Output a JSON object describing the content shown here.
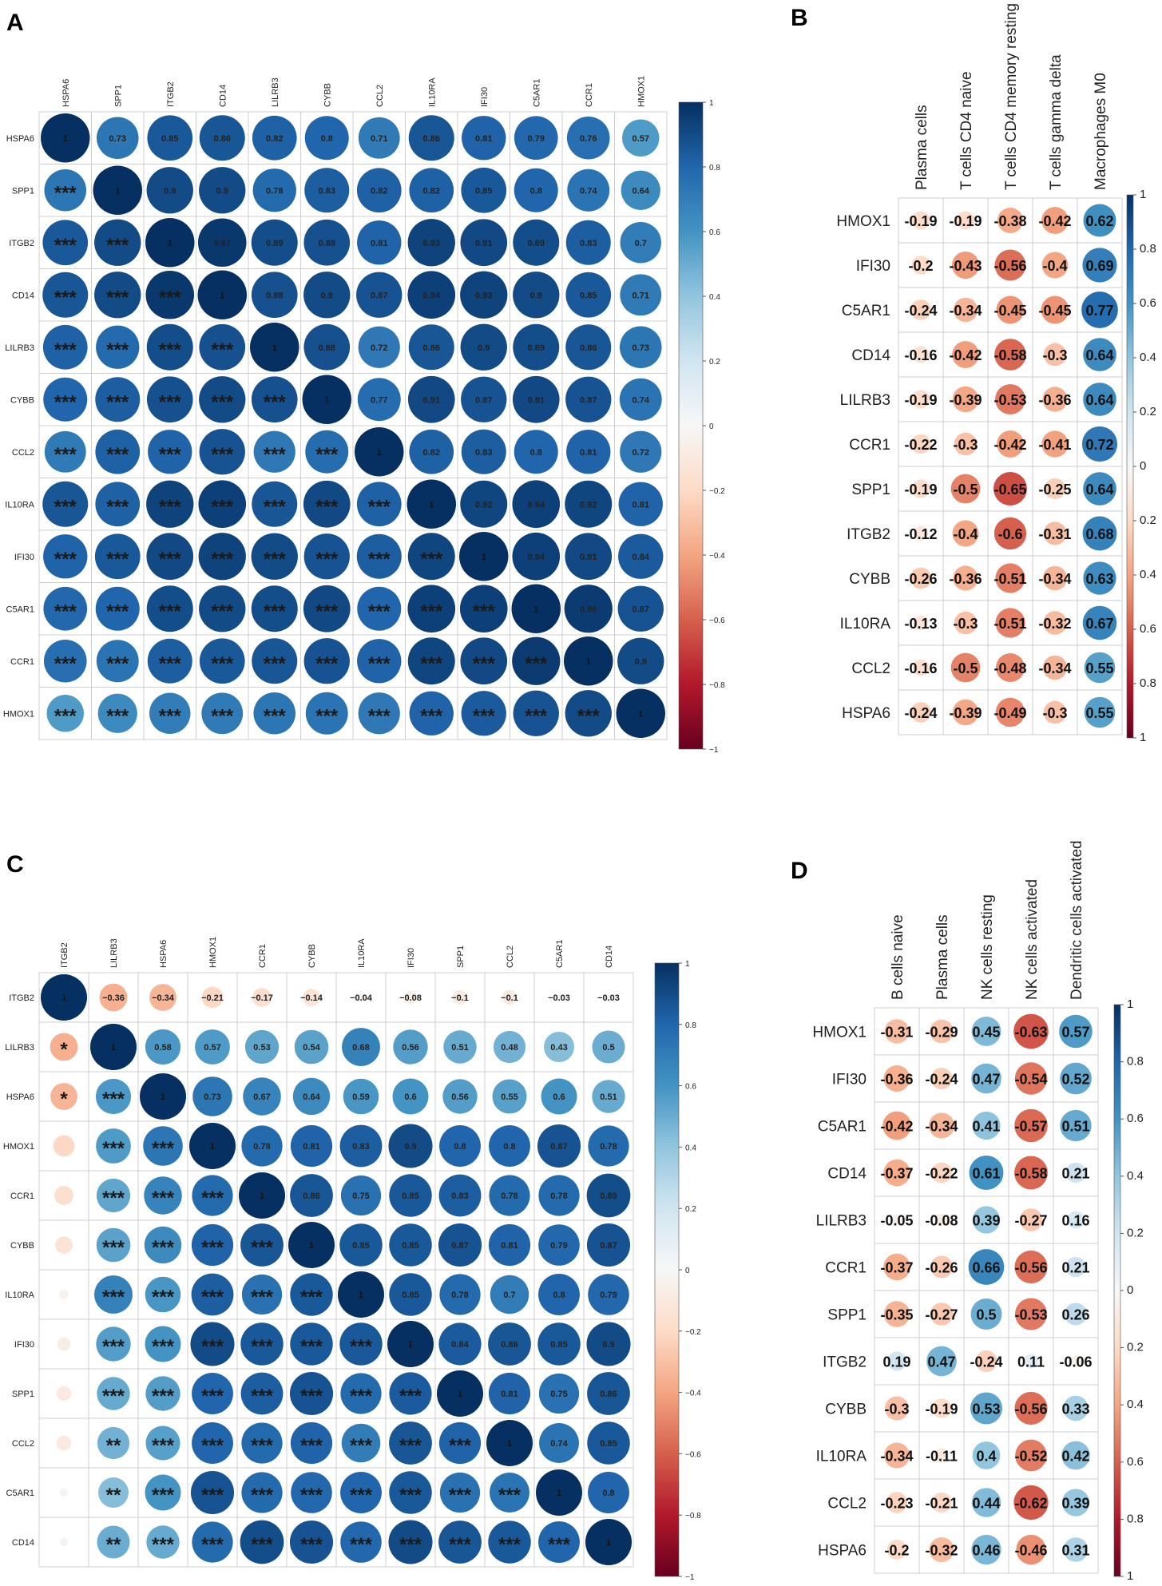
{
  "panels": [
    {
      "letter": "A",
      "chart_data": {
        "type": "heatmap",
        "rows": [
          "HSPA6",
          "SPP1",
          "ITGB2",
          "CD14",
          "LILRB3",
          "CYBB",
          "CCL2",
          "IL10RA",
          "IFI30",
          "C5AR1",
          "CCR1",
          "HMOX1"
        ],
        "cols": [
          "HSPA6",
          "SPP1",
          "ITGB2",
          "CD14",
          "LILRB3",
          "CYBB",
          "CCL2",
          "IL10RA",
          "IFI30",
          "C5AR1",
          "CCR1",
          "HMOX1"
        ],
        "upper_labels": [
          [
            "1",
            "0.73",
            "0.85",
            "0.86",
            "0.82",
            "0.8",
            "0.71",
            "0.86",
            "0.81",
            "0.79",
            "0.76",
            "0.57"
          ],
          [
            "",
            "1",
            "0.9",
            "0.9",
            "0.78",
            "0.83",
            "0.82",
            "0.82",
            "0.85",
            "0.8",
            "0.74",
            "0.64"
          ],
          [
            "",
            "",
            "1",
            "0.97",
            "0.89",
            "0.88",
            "0.81",
            "0.93",
            "0.91",
            "0.89",
            "0.83",
            "0.7"
          ],
          [
            "",
            "",
            "",
            "1",
            "0.88",
            "0.9",
            "0.87",
            "0.94",
            "0.93",
            "0.9",
            "0.85",
            "0.71"
          ],
          [
            "",
            "",
            "",
            "",
            "1",
            "0.88",
            "0.72",
            "0.86",
            "0.9",
            "0.89",
            "0.86",
            "0.73"
          ],
          [
            "",
            "",
            "",
            "",
            "",
            "1",
            "0.77",
            "0.91",
            "0.87",
            "0.91",
            "0.87",
            "0.74"
          ],
          [
            "",
            "",
            "",
            "",
            "",
            "",
            "1",
            "0.82",
            "0.83",
            "0.8",
            "0.81",
            "0.72"
          ],
          [
            "",
            "",
            "",
            "",
            "",
            "",
            "",
            "1",
            "0.92",
            "0.94",
            "0.92",
            "0.81"
          ],
          [
            "",
            "",
            "",
            "",
            "",
            "",
            "",
            "",
            "1",
            "0.94",
            "0.91",
            "0.84"
          ],
          [
            "",
            "",
            "",
            "",
            "",
            "",
            "",
            "",
            "",
            "1",
            "0.96",
            "0.87"
          ],
          [
            "",
            "",
            "",
            "",
            "",
            "",
            "",
            "",
            "",
            "",
            "1",
            "0.9"
          ],
          [
            "",
            "",
            "",
            "",
            "",
            "",
            "",
            "",
            "",
            "",
            "",
            "1"
          ]
        ],
        "lower_sig": [
          [],
          [
            "***"
          ],
          [
            "***",
            "***"
          ],
          [
            "***",
            "***",
            "***"
          ],
          [
            "***",
            "***",
            "***",
            "***"
          ],
          [
            "***",
            "***",
            "***",
            "***",
            "***"
          ],
          [
            "***",
            "***",
            "***",
            "***",
            "***",
            "***"
          ],
          [
            "***",
            "***",
            "***",
            "***",
            "***",
            "***",
            "***"
          ],
          [
            "***",
            "***",
            "***",
            "***",
            "***",
            "***",
            "***",
            "***"
          ],
          [
            "***",
            "***",
            "***",
            "***",
            "***",
            "***",
            "***",
            "***",
            "***"
          ],
          [
            "***",
            "***",
            "***",
            "***",
            "***",
            "***",
            "***",
            "***",
            "***",
            "***"
          ],
          [
            "***",
            "***",
            "***",
            "***",
            "***",
            "***",
            "***",
            "***",
            "***",
            "***",
            "***"
          ]
        ],
        "colorbar_ticks": [
          "1",
          "0.8",
          "0.6",
          "0.4",
          "0.2",
          "0",
          "−0.2",
          "−0.4",
          "−0.6",
          "−0.8",
          "−1"
        ],
        "range": [
          -1,
          1
        ]
      }
    },
    {
      "letter": "B",
      "chart_data": {
        "type": "heatmap",
        "rows": [
          "HMOX1",
          "IFI30",
          "C5AR1",
          "CD14",
          "LILRB3",
          "CCR1",
          "SPP1",
          "ITGB2",
          "CYBB",
          "IL10RA",
          "CCL2",
          "HSPA6"
        ],
        "cols": [
          "Plasma cells",
          "T cells CD4 naive",
          "T cells CD4 memory resting",
          "T cells gamma delta",
          "Macrophages M0"
        ],
        "labels": [
          [
            "-0.19",
            "-0.19",
            "-0.38",
            "-0.42",
            "0.62"
          ],
          [
            "-0.2",
            "-0.43",
            "-0.56",
            "-0.4",
            "0.69"
          ],
          [
            "-0.24",
            "-0.34",
            "-0.45",
            "-0.45",
            "0.77"
          ],
          [
            "-0.16",
            "-0.42",
            "-0.58",
            "-0.3",
            "0.64"
          ],
          [
            "-0.19",
            "-0.39",
            "-0.53",
            "-0.36",
            "0.64"
          ],
          [
            "-0.22",
            "-0.3",
            "-0.42",
            "-0.41",
            "0.72"
          ],
          [
            "-0.19",
            "-0.5",
            "-0.65",
            "-0.25",
            "0.64"
          ],
          [
            "-0.12",
            "-0.4",
            "-0.6",
            "-0.31",
            "0.68"
          ],
          [
            "-0.26",
            "-0.36",
            "-0.51",
            "-0.34",
            "0.63"
          ],
          [
            "-0.13",
            "-0.3",
            "-0.51",
            "-0.32",
            "0.67"
          ],
          [
            "-0.16",
            "-0.5",
            "-0.48",
            "-0.34",
            "0.55"
          ],
          [
            "-0.24",
            "-0.39",
            "-0.49",
            "-0.3",
            "0.55"
          ]
        ],
        "colorbar_ticks": [
          "1",
          "0.8",
          "0.6",
          "0.4",
          "0.2",
          "0",
          "0.2",
          "0.4",
          "0.6",
          "0.8",
          "1"
        ],
        "range": [
          -1,
          1
        ]
      }
    },
    {
      "letter": "C",
      "chart_data": {
        "type": "heatmap",
        "rows": [
          "ITGB2",
          "LILRB3",
          "HSPA6",
          "HMOX1",
          "CCR1",
          "CYBB",
          "IL10RA",
          "IFI30",
          "SPP1",
          "CCL2",
          "C5AR1",
          "CD14"
        ],
        "cols": [
          "ITGB2",
          "LILRB3",
          "HSPA6",
          "HMOX1",
          "CCR1",
          "CYBB",
          "IL10RA",
          "IFI30",
          "SPP1",
          "CCL2",
          "C5AR1",
          "CD14"
        ],
        "first_col_values": [
          1,
          -0.36,
          -0.34,
          -0.21,
          -0.17,
          -0.14,
          -0.04,
          -0.08,
          -0.1,
          -0.1,
          -0.03,
          -0.03
        ],
        "upper_labels": [
          [
            "1",
            "−0.36",
            "−0.34",
            "−0.21",
            "−0.17",
            "−0.14",
            "−0.04",
            "−0.08",
            "−0.1",
            "−0.1",
            "−0.03",
            "−0.03"
          ],
          [
            "",
            "1",
            "0.58",
            "0.57",
            "0.53",
            "0.54",
            "0.68",
            "0.56",
            "0.51",
            "0.48",
            "0.43",
            "0.5"
          ],
          [
            "",
            "",
            "1",
            "0.73",
            "0.67",
            "0.64",
            "0.59",
            "0.6",
            "0.56",
            "0.55",
            "0.6",
            "0.51"
          ],
          [
            "",
            "",
            "",
            "1",
            "0.78",
            "0.81",
            "0.83",
            "0.9",
            "0.8",
            "0.8",
            "0.87",
            "0.78"
          ],
          [
            "",
            "",
            "",
            "",
            "1",
            "0.86",
            "0.75",
            "0.85",
            "0.83",
            "0.78",
            "0.78",
            "0.89"
          ],
          [
            "",
            "",
            "",
            "",
            "",
            "1",
            "0.85",
            "0.85",
            "0.87",
            "0.81",
            "0.79",
            "0.87"
          ],
          [
            "",
            "",
            "",
            "",
            "",
            "",
            "1",
            "0.85",
            "0.78",
            "0.7",
            "0.8",
            "0.79"
          ],
          [
            "",
            "",
            "",
            "",
            "",
            "",
            "",
            "1",
            "0.84",
            "0.86",
            "0.85",
            "0.9"
          ],
          [
            "",
            "",
            "",
            "",
            "",
            "",
            "",
            "",
            "1",
            "0.81",
            "0.75",
            "0.86"
          ],
          [
            "",
            "",
            "",
            "",
            "",
            "",
            "",
            "",
            "",
            "1",
            "0.74",
            "0.85"
          ],
          [
            "",
            "",
            "",
            "",
            "",
            "",
            "",
            "",
            "",
            "",
            "1",
            "0.8"
          ],
          [
            "",
            "",
            "",
            "",
            "",
            "",
            "",
            "",
            "",
            "",
            "",
            "1"
          ]
        ],
        "lower_sig": [
          [],
          [
            "*"
          ],
          [
            "*",
            "***"
          ],
          [
            "",
            "***",
            "***"
          ],
          [
            "",
            "***",
            "***",
            "***"
          ],
          [
            "",
            "***",
            "***",
            "***",
            "***"
          ],
          [
            "",
            "***",
            "***",
            "***",
            "***",
            "***"
          ],
          [
            "",
            "***",
            "***",
            "***",
            "***",
            "***",
            "***"
          ],
          [
            "",
            "***",
            "***",
            "***",
            "***",
            "***",
            "***",
            "***"
          ],
          [
            "",
            "**",
            "***",
            "***",
            "***",
            "***",
            "***",
            "***",
            "***"
          ],
          [
            "",
            "**",
            "***",
            "***",
            "***",
            "***",
            "***",
            "***",
            "***",
            "***"
          ],
          [
            "",
            "**",
            "***",
            "***",
            "***",
            "***",
            "***",
            "***",
            "***",
            "***",
            "***"
          ]
        ],
        "colorbar_ticks": [
          "1",
          "0.8",
          "0.6",
          "0.4",
          "0.2",
          "0",
          "−0.2",
          "−0.4",
          "−0.6",
          "−0.8",
          "−1"
        ],
        "range": [
          -1,
          1
        ]
      }
    },
    {
      "letter": "D",
      "chart_data": {
        "type": "heatmap",
        "rows": [
          "HMOX1",
          "IFI30",
          "C5AR1",
          "CD14",
          "LILRB3",
          "CCR1",
          "SPP1",
          "ITGB2",
          "CYBB",
          "IL10RA",
          "CCL2",
          "HSPA6"
        ],
        "cols": [
          "B cells naive",
          "Plasma cells",
          "NK cells resting",
          "NK cells activated",
          "Dendritic cells activated"
        ],
        "labels": [
          [
            "-0.31",
            "-0.29",
            "0.45",
            "-0.63",
            "0.57"
          ],
          [
            "-0.36",
            "-0.24",
            "0.47",
            "-0.54",
            "0.52"
          ],
          [
            "-0.42",
            "-0.34",
            "0.41",
            "-0.57",
            "0.51"
          ],
          [
            "-0.37",
            "-0.22",
            "0.61",
            "-0.58",
            "0.21"
          ],
          [
            "-0.05",
            "-0.08",
            "0.39",
            "-0.27",
            "0.16"
          ],
          [
            "-0.37",
            "-0.26",
            "0.66",
            "-0.56",
            "0.21"
          ],
          [
            "-0.35",
            "-0.27",
            "0.5",
            "-0.53",
            "0.26"
          ],
          [
            "0.19",
            "0.47",
            "-0.24",
            "0.11",
            "-0.06"
          ],
          [
            "-0.3",
            "-0.19",
            "0.53",
            "-0.56",
            "0.33"
          ],
          [
            "-0.34",
            "-0.11",
            "0.4",
            "-0.52",
            "0.42"
          ],
          [
            "-0.23",
            "-0.21",
            "0.44",
            "-0.62",
            "0.39"
          ],
          [
            "-0.2",
            "-0.32",
            "0.46",
            "-0.46",
            "0.31"
          ]
        ],
        "colorbar_ticks": [
          "1",
          "0.8",
          "0.6",
          "0.4",
          "0.2",
          "0",
          "0.2",
          "0.4",
          "0.6",
          "0.8",
          "1"
        ],
        "range": [
          -1,
          1
        ]
      }
    }
  ]
}
